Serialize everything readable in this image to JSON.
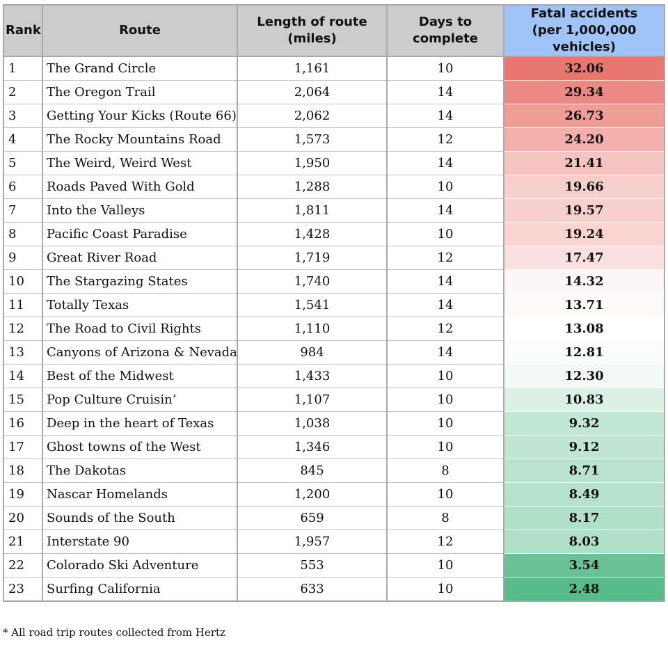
{
  "table": {
    "headers": {
      "rank": "Rank",
      "route": "Route",
      "length": "Length of route (miles)",
      "days": "Days to complete",
      "fatal_line1": "Fatal accidents",
      "fatal_line2": "(per 1,000,000 vehicles)"
    },
    "rows": [
      {
        "rank": "1",
        "route": "The Grand Circle",
        "length": "1,161",
        "days": "10",
        "fatal": "32.06"
      },
      {
        "rank": "2",
        "route": "The Oregon Trail",
        "length": "2,064",
        "days": "14",
        "fatal": "29.34"
      },
      {
        "rank": "3",
        "route": "Getting Your Kicks (Route 66)",
        "length": "2,062",
        "days": "14",
        "fatal": "26.73"
      },
      {
        "rank": "4",
        "route": "The Rocky Mountains Road",
        "length": "1,573",
        "days": "12",
        "fatal": "24.20"
      },
      {
        "rank": "5",
        "route": "The Weird, Weird West",
        "length": "1,950",
        "days": "14",
        "fatal": "21.41"
      },
      {
        "rank": "6",
        "route": "Roads Paved With Gold",
        "length": "1,288",
        "days": "10",
        "fatal": "19.66"
      },
      {
        "rank": "7",
        "route": "Into the Valleys",
        "length": "1,811",
        "days": "14",
        "fatal": "19.57"
      },
      {
        "rank": "8",
        "route": "Pacific Coast Paradise",
        "length": "1,428",
        "days": "10",
        "fatal": "19.24"
      },
      {
        "rank": "9",
        "route": "Great River Road",
        "length": "1,719",
        "days": "12",
        "fatal": "17.47"
      },
      {
        "rank": "10",
        "route": "The Stargazing States",
        "length": "1,740",
        "days": "14",
        "fatal": "14.32"
      },
      {
        "rank": "11",
        "route": "Totally Texas",
        "length": "1,541",
        "days": "14",
        "fatal": "13.71"
      },
      {
        "rank": "12",
        "route": "The Road to Civil Rights",
        "length": "1,110",
        "days": "12",
        "fatal": "13.08"
      },
      {
        "rank": "13",
        "route": "Canyons of Arizona & Nevada",
        "length": "984",
        "days": "14",
        "fatal": "12.81"
      },
      {
        "rank": "14",
        "route": "Best of the Midwest",
        "length": "1,433",
        "days": "10",
        "fatal": "12.30"
      },
      {
        "rank": "15",
        "route": "Pop Culture Cruisin’",
        "length": "1,107",
        "days": "10",
        "fatal": "10.83"
      },
      {
        "rank": "16",
        "route": "Deep in the heart of Texas",
        "length": "1,038",
        "days": "10",
        "fatal": "9.32"
      },
      {
        "rank": "17",
        "route": "Ghost towns of the West",
        "length": "1,346",
        "days": "10",
        "fatal": "9.12"
      },
      {
        "rank": "18",
        "route": "The Dakotas",
        "length": "845",
        "days": "8",
        "fatal": "8.71"
      },
      {
        "rank": "19",
        "route": "Nascar Homelands",
        "length": "1,200",
        "days": "10",
        "fatal": "8.49"
      },
      {
        "rank": "20",
        "route": "Sounds of the South",
        "length": "659",
        "days": "8",
        "fatal": "8.17"
      },
      {
        "rank": "21",
        "route": "Interstate 90",
        "length": "1,957",
        "days": "12",
        "fatal": "8.03"
      },
      {
        "rank": "22",
        "route": "Colorado Ski Adventure",
        "length": "553",
        "days": "10",
        "fatal": "3.54"
      },
      {
        "rank": "23",
        "route": "Surfing California",
        "length": "633",
        "days": "10",
        "fatal": "2.48"
      }
    ]
  },
  "footnote": "* All road trip routes collected from Hertz",
  "colors": {
    "header_bg": "#cccccc",
    "fatal_header_bg": "#9fc4f7",
    "scale_high": "#e8776f",
    "scale_mid": "#ffffff",
    "scale_low": "#57bb8a",
    "border": "#a9a9a9"
  }
}
